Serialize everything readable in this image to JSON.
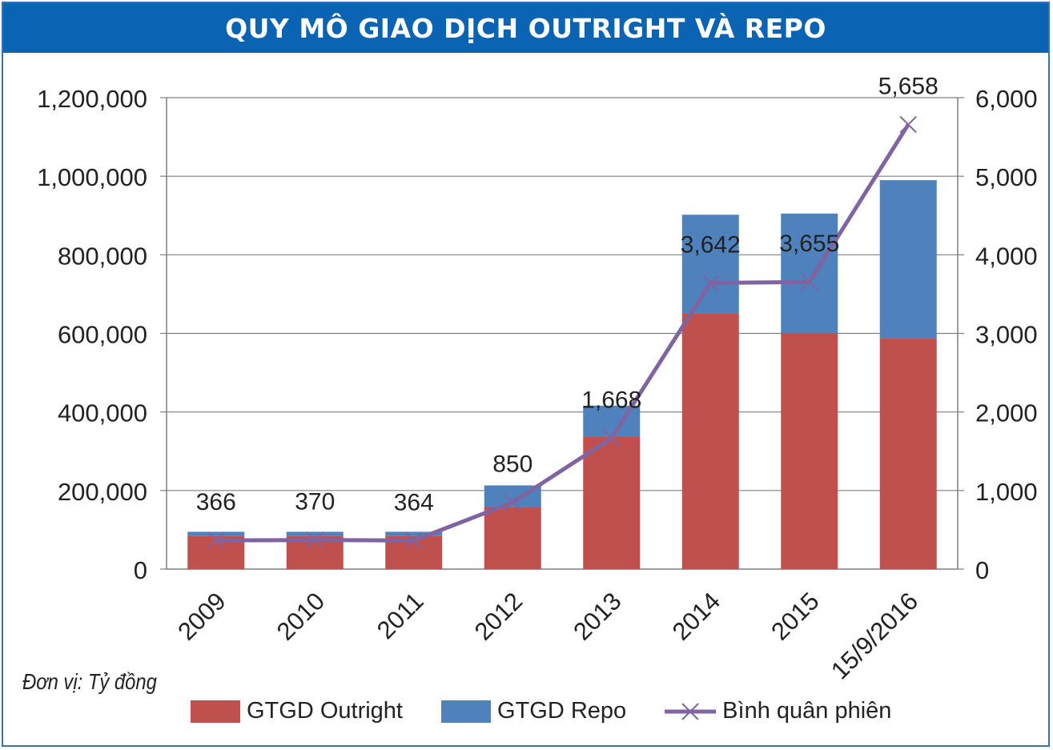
{
  "title": "QUY MÔ GIAO DỊCH OUTRIGHT VÀ REPO",
  "unit_note": "Đơn vị: Tỷ đồng",
  "colors": {
    "outright": "#c0504d",
    "repo": "#4f81bd",
    "avg_line": "#8064a2",
    "title_bg": "#0a63b3"
  },
  "legend": [
    {
      "label": "GTGD Outright",
      "color": "#c0504d",
      "kind": "bar"
    },
    {
      "label": "GTGD Repo",
      "color": "#4f81bd",
      "kind": "bar"
    },
    {
      "label": "Bình quân phiên",
      "color": "#8064a2",
      "kind": "line"
    }
  ],
  "chart_data": {
    "type": "bar",
    "stacked": true,
    "categories": [
      "2009",
      "2010",
      "2011",
      "2012",
      "2013",
      "2014",
      "2015",
      "15/9/2016"
    ],
    "series": [
      {
        "name": "GTGD Outright",
        "axis": "left",
        "values": [
          85000,
          85000,
          85000,
          158000,
          338000,
          650000,
          600000,
          588000
        ]
      },
      {
        "name": "GTGD Repo",
        "axis": "left",
        "values": [
          10000,
          10000,
          10000,
          55000,
          78000,
          252000,
          305000,
          402000
        ]
      },
      {
        "name": "Bình quân phiên",
        "axis": "right",
        "type": "line",
        "values": [
          366,
          370,
          364,
          850,
          1668,
          3642,
          3655,
          5658
        ]
      }
    ],
    "point_labels": [
      "366",
      "370",
      "364",
      "850",
      "1,668",
      "3,642",
      "3,655",
      "5,658"
    ],
    "left_axis": {
      "ylim": [
        0,
        1200000
      ],
      "ticks": [
        "0",
        "200,000",
        "400,000",
        "600,000",
        "800,000",
        "1,000,000",
        "1,200,000"
      ]
    },
    "right_axis": {
      "ylim": [
        0,
        6000
      ],
      "ticks": [
        "0",
        "1,000",
        "2,000",
        "3,000",
        "4,000",
        "5,000",
        "6,000"
      ]
    },
    "grid": true,
    "legend_position": "bottom"
  }
}
